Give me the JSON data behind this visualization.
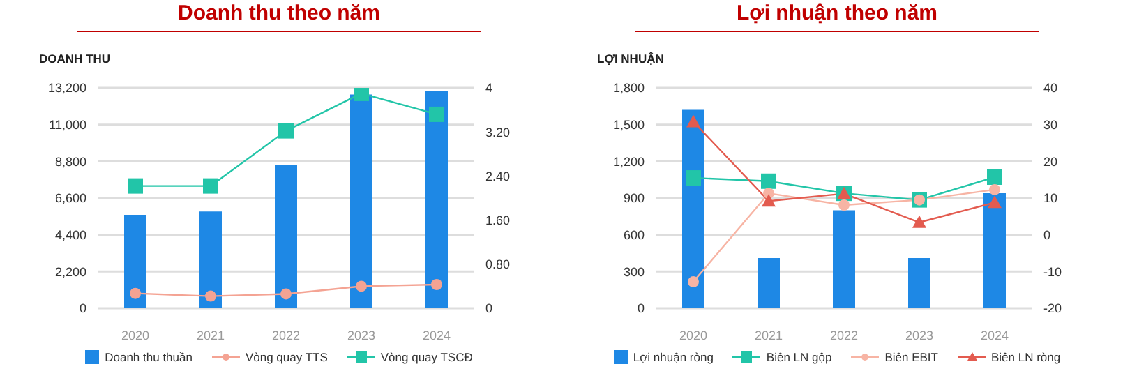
{
  "chart_data": [
    {
      "type": "bar",
      "title": "Doanh thu theo năm",
      "ylabel": "DOANH THU",
      "categories": [
        "2020",
        "2021",
        "2022",
        "2023",
        "2024"
      ],
      "series": [
        {
          "name": "Doanh thu thuần",
          "color": "#1e88e5",
          "values": [
            5600,
            5800,
            8600,
            12800,
            13000
          ]
        },
        {
          "name": "Vòng quay TTS",
          "type": "line",
          "axis": "y2",
          "marker": "circle",
          "color": "#f4a393",
          "values": [
            0.27,
            0.22,
            0.26,
            0.4,
            0.43
          ]
        },
        {
          "name": "Vòng quay TSCĐ",
          "type": "line",
          "axis": "y2",
          "marker": "square",
          "color": "#22c5a8",
          "values": [
            2.22,
            2.22,
            3.22,
            3.9,
            3.52
          ]
        }
      ],
      "ylim": [
        0,
        13200
      ],
      "yticks": [
        0,
        {
          "value": 2200,
          "label": "2,200"
        },
        {
          "value": 4400,
          "label": "4,400"
        },
        {
          "value": 6600,
          "label": "6,600"
        },
        {
          "value": 8800,
          "label": "8,800"
        },
        {
          "value": 11000,
          "label": "11,000"
        },
        {
          "value": 13200,
          "label": "13,200"
        }
      ],
      "y2lim": [
        0,
        4
      ],
      "y2ticks": [
        0,
        {
          "value": 0.8,
          "label": "0.80"
        },
        {
          "value": 1.6,
          "label": "1.60"
        },
        {
          "value": 2.4,
          "label": "2.40"
        },
        {
          "value": 3.2,
          "label": "3.20"
        },
        4
      ],
      "grid": "y",
      "legend": "bottom"
    },
    {
      "type": "bar",
      "title": "Lợi nhuận theo năm",
      "ylabel": "LỢI NHUẬN",
      "categories": [
        "2020",
        "2021",
        "2022",
        "2023",
        "2024"
      ],
      "series": [
        {
          "name": "Lợi nhuận ròng",
          "color": "#1e88e5",
          "values": [
            1620,
            410,
            800,
            410,
            940
          ]
        },
        {
          "name": "Biên LN gộp",
          "type": "line",
          "axis": "y2",
          "marker": "square",
          "color": "#22c5a8",
          "values": [
            15.5,
            14.6,
            11.3,
            9.5,
            15.7
          ]
        },
        {
          "name": "Biên EBIT",
          "type": "line",
          "axis": "y2",
          "marker": "circle",
          "color": "#f7b4a4",
          "values": [
            -12.8,
            11.3,
            8.1,
            9.5,
            12.3
          ]
        },
        {
          "name": "Biên LN ròng",
          "type": "line",
          "axis": "y2",
          "marker": "triangle",
          "color": "#e35b4f",
          "values": [
            30.8,
            9.2,
            11.2,
            3.4,
            8.8
          ]
        }
      ],
      "ylim": [
        0,
        1800
      ],
      "yticks": [
        0,
        300,
        600,
        900,
        {
          "value": 1200,
          "label": "1,200"
        },
        {
          "value": 1500,
          "label": "1,500"
        },
        {
          "value": 1800,
          "label": "1,800"
        }
      ],
      "y2lim": [
        -20,
        40
      ],
      "y2ticks": [
        -20,
        -10,
        0,
        10,
        20,
        30,
        40
      ],
      "grid": "y",
      "legend": "bottom"
    }
  ]
}
